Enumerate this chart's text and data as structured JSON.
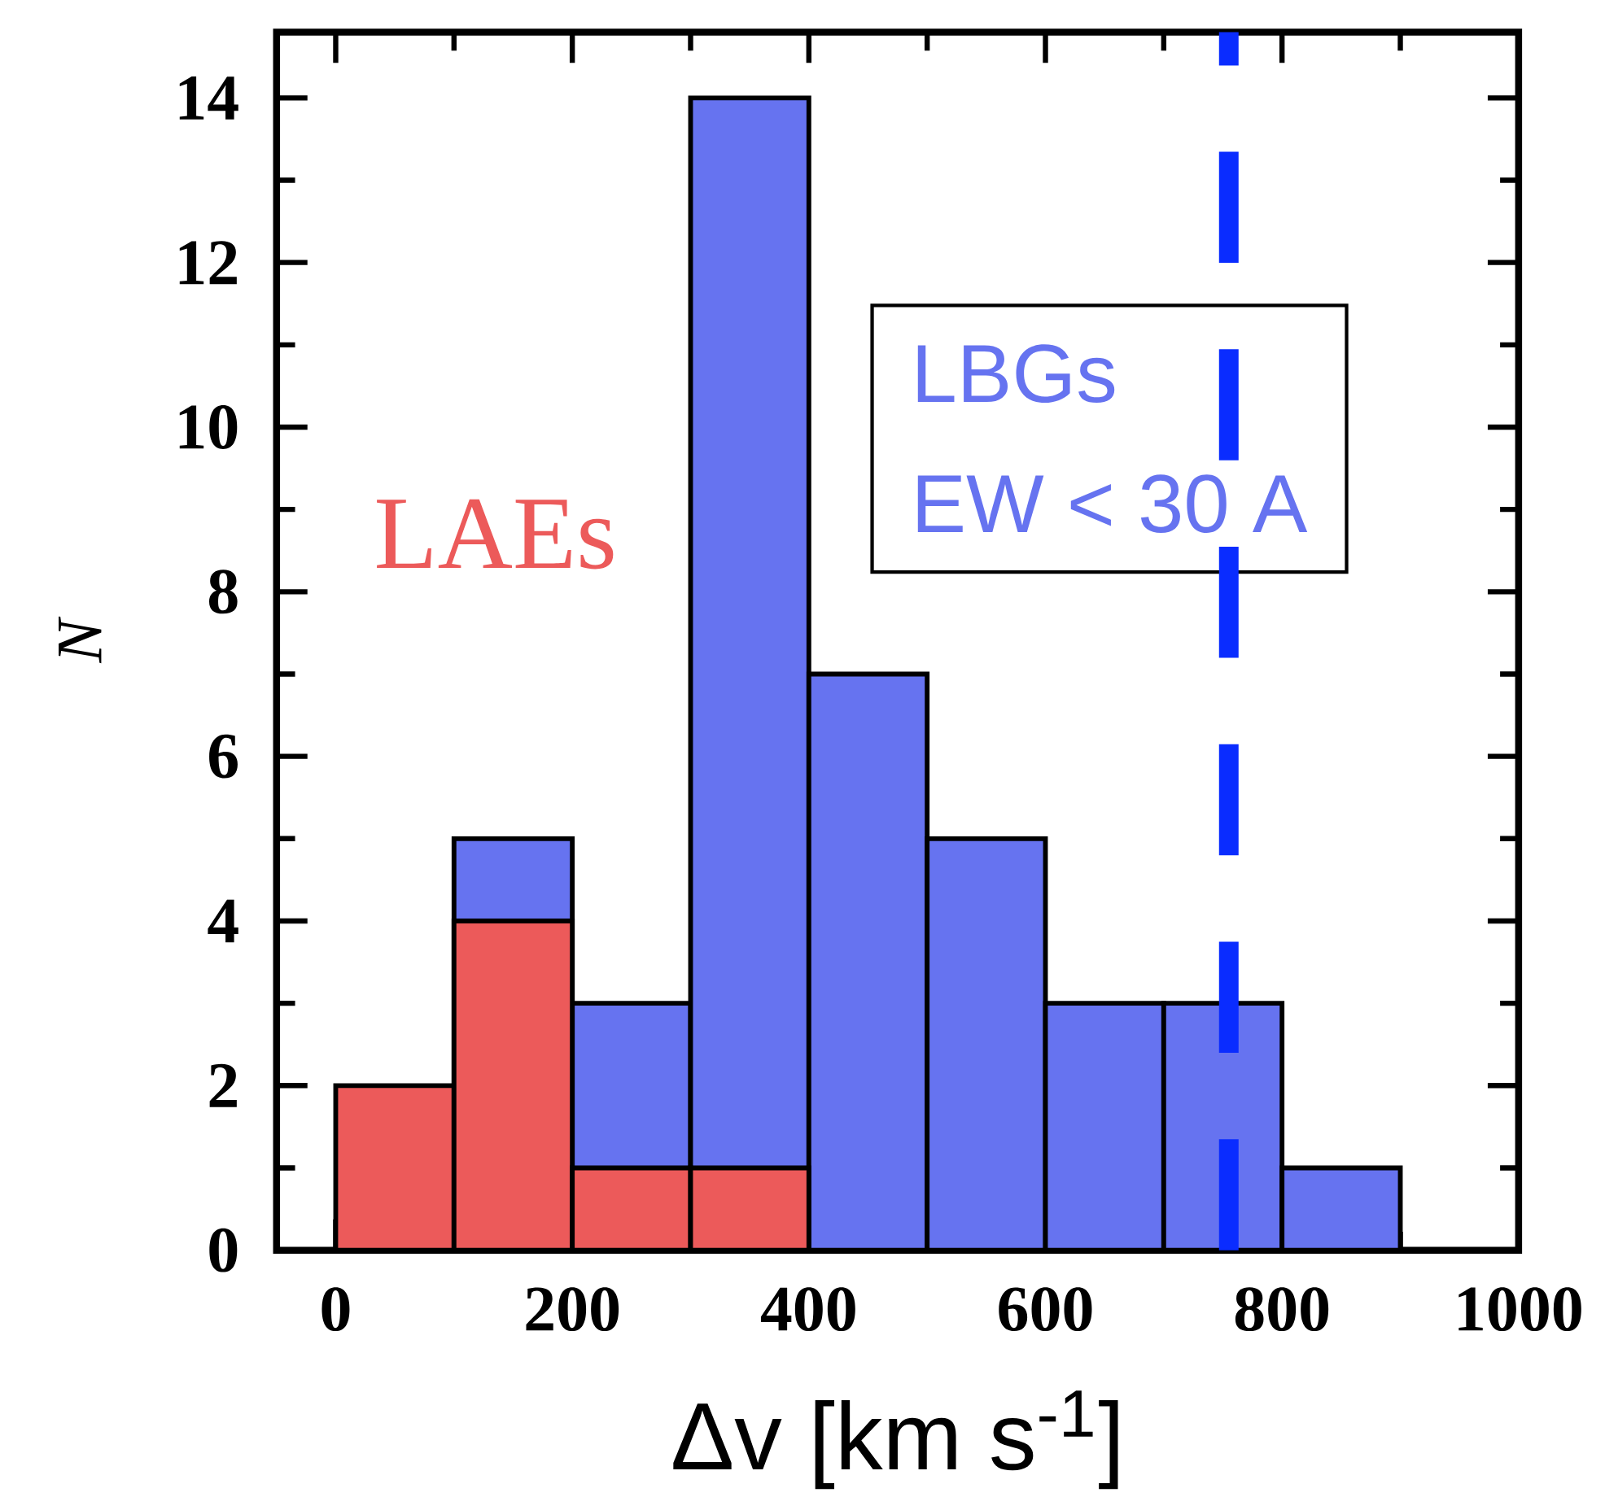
{
  "chart_data": {
    "type": "histogram",
    "xlabel": "Δv [km s$^{-1}$]",
    "ylabel": "N",
    "xlim": [
      -50,
      1000
    ],
    "ylim": [
      0,
      14.8
    ],
    "xticks": [
      0,
      200,
      400,
      600,
      800,
      1000
    ],
    "yticks": [
      0,
      2,
      4,
      6,
      8,
      10,
      12,
      14
    ],
    "bins": [
      0,
      100,
      200,
      300,
      400,
      500,
      600,
      700,
      800,
      900
    ],
    "series": [
      {
        "name": "LBGs",
        "color": "#6673f0",
        "values": [
          null,
          5,
          3,
          14,
          7,
          5,
          3,
          3,
          1
        ]
      },
      {
        "name": "LAEs",
        "color": "#ec5a5a",
        "values": [
          2,
          4,
          1,
          1,
          null,
          null,
          null,
          null,
          null
        ]
      }
    ],
    "ref_lines": [
      {
        "axis": "x",
        "value": 755,
        "color": "#0a2cff",
        "line_style": "dashed"
      }
    ],
    "annotations": [
      "EW < 30 A"
    ],
    "legend": "top left",
    "grid": false
  }
}
